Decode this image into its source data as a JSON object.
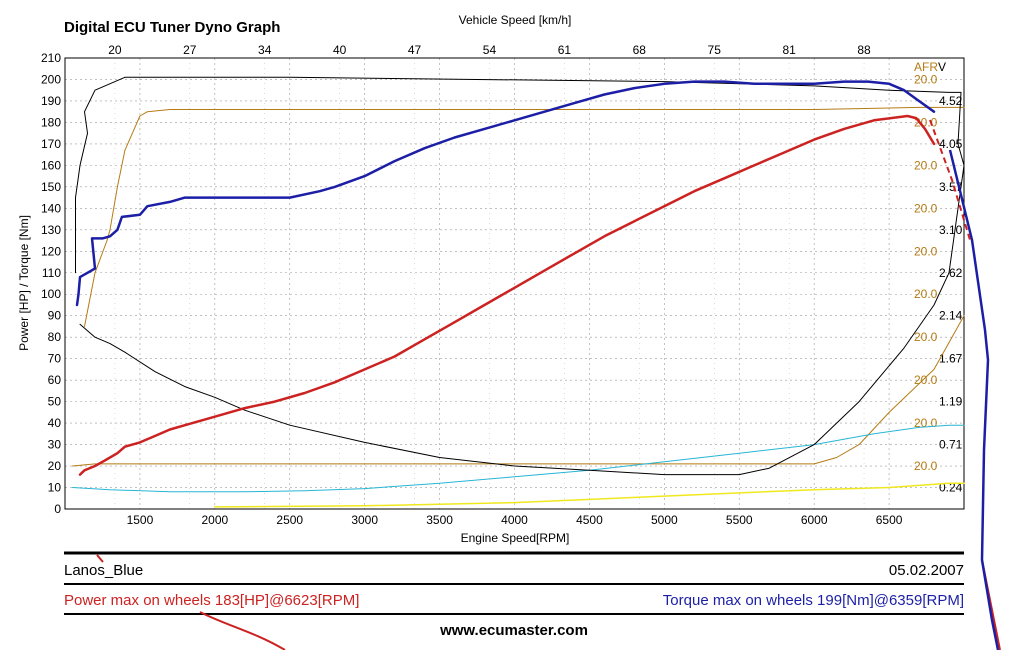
{
  "header": {
    "title": "Digital ECU Tuner Dyno Graph"
  },
  "info": {
    "car_name": "Lanos_Blue",
    "date": "05.02.2007",
    "power_max": "Power max on wheels 183[HP]@6623[RPM]",
    "torque_max": "Torque max on wheels 199[Nm]@6359[RPM]",
    "website": "www.ecumaster.com"
  },
  "colors": {
    "power": "#cc2222",
    "torque": "#1c1fa6",
    "black_line": "#000000",
    "afr": "#b57b14",
    "cyan": "#27b5d6",
    "yellow": "#f0e81e",
    "grid": "#9a9a9a"
  },
  "chart_data": {
    "type": "line",
    "xlabel": "Engine Speed[RPM]",
    "x2label": "Vehicle Speed [km/h]",
    "ylabel": "Power [HP] / Torque [Nm]",
    "xlim": [
      1000,
      7000
    ],
    "ylim": [
      0,
      210
    ],
    "x_ticks": [
      1500,
      2000,
      2500,
      3000,
      3500,
      4000,
      4500,
      5000,
      5500,
      6000,
      6500
    ],
    "y_ticks": [
      0,
      10,
      20,
      30,
      40,
      50,
      60,
      70,
      80,
      90,
      100,
      110,
      120,
      130,
      140,
      150,
      160,
      170,
      180,
      190,
      200,
      210
    ],
    "speed_ticks": [
      "20",
      "27",
      "34",
      "40",
      "47",
      "54",
      "61",
      "68",
      "75",
      "81",
      "88"
    ],
    "speed_tick_rpm": [
      1333,
      1833,
      2333,
      2833,
      3333,
      3833,
      4333,
      4833,
      5333,
      5833,
      6333
    ],
    "afr_axis_label": "AFR",
    "v_axis_label": "V",
    "afr_ticks": [
      "20.0",
      "20.0",
      "20.0",
      "20.0",
      "20.0",
      "20.0",
      "20.0",
      "20.0",
      "20.0",
      "20.0"
    ],
    "afr_tick_positions": [
      200,
      180,
      160,
      140,
      120,
      100,
      80,
      60,
      40,
      20
    ],
    "v_ticks": [
      "4.52",
      "4.05",
      "3.57",
      "3.10",
      "2.62",
      "2.14",
      "1.67",
      "1.19",
      "0.71",
      "0.24"
    ],
    "v_tick_positions": [
      190,
      170,
      150,
      130,
      110,
      90,
      70,
      50,
      30,
      10
    ],
    "grid": true,
    "series": [
      {
        "key": "power",
        "values": [
          [
            1100,
            16
          ],
          [
            1130,
            18
          ],
          [
            1200,
            20
          ],
          [
            1250,
            22
          ],
          [
            1300,
            24
          ],
          [
            1350,
            26
          ],
          [
            1400,
            29
          ],
          [
            1500,
            31
          ],
          [
            1600,
            34
          ],
          [
            1700,
            37
          ],
          [
            1800,
            39
          ],
          [
            2000,
            43
          ],
          [
            2200,
            47
          ],
          [
            2400,
            50
          ],
          [
            2600,
            54
          ],
          [
            2800,
            59
          ],
          [
            3000,
            65
          ],
          [
            3200,
            71
          ],
          [
            3400,
            79
          ],
          [
            3600,
            87
          ],
          [
            3800,
            95
          ],
          [
            4000,
            103
          ],
          [
            4200,
            111
          ],
          [
            4400,
            119
          ],
          [
            4600,
            127
          ],
          [
            4800,
            134
          ],
          [
            5000,
            141
          ],
          [
            5200,
            148
          ],
          [
            5400,
            154
          ],
          [
            5600,
            160
          ],
          [
            5800,
            166
          ],
          [
            6000,
            172
          ],
          [
            6200,
            177
          ],
          [
            6400,
            181
          ],
          [
            6623,
            183
          ],
          [
            6680,
            182
          ],
          [
            6740,
            177
          ],
          [
            6800,
            170
          ]
        ]
      },
      {
        "key": "torque",
        "values": [
          [
            1080,
            95
          ],
          [
            1090,
            100
          ],
          [
            1100,
            108
          ],
          [
            1150,
            110
          ],
          [
            1200,
            112
          ],
          [
            1180,
            126
          ],
          [
            1250,
            126
          ],
          [
            1300,
            127
          ],
          [
            1350,
            130
          ],
          [
            1380,
            136
          ],
          [
            1500,
            137
          ],
          [
            1550,
            141
          ],
          [
            1700,
            143
          ],
          [
            1800,
            145
          ],
          [
            2000,
            145
          ],
          [
            2500,
            145
          ],
          [
            2700,
            148
          ],
          [
            2800,
            150
          ],
          [
            3000,
            155
          ],
          [
            3200,
            162
          ],
          [
            3400,
            168
          ],
          [
            3600,
            173
          ],
          [
            3800,
            177
          ],
          [
            4000,
            181
          ],
          [
            4200,
            185
          ],
          [
            4400,
            189
          ],
          [
            4600,
            193
          ],
          [
            4800,
            196
          ],
          [
            5000,
            198
          ],
          [
            5200,
            199
          ],
          [
            5400,
            199
          ],
          [
            5600,
            198
          ],
          [
            5800,
            198
          ],
          [
            6000,
            198
          ],
          [
            6200,
            199
          ],
          [
            6359,
            199
          ],
          [
            6500,
            198
          ],
          [
            6600,
            195
          ],
          [
            6700,
            190
          ],
          [
            6800,
            185
          ]
        ]
      },
      {
        "key": "black_line",
        "values": [
          [
            1100,
            86
          ],
          [
            1200,
            80
          ],
          [
            1300,
            77
          ],
          [
            1400,
            73
          ],
          [
            1600,
            64
          ],
          [
            1800,
            57
          ],
          [
            2000,
            52
          ],
          [
            2200,
            46
          ],
          [
            2500,
            39
          ],
          [
            3000,
            31
          ],
          [
            3500,
            24
          ],
          [
            4000,
            20
          ],
          [
            4500,
            18
          ],
          [
            5000,
            16
          ],
          [
            5500,
            16
          ],
          [
            5700,
            19
          ],
          [
            6000,
            30
          ],
          [
            6300,
            50
          ],
          [
            6600,
            75
          ],
          [
            6800,
            95
          ],
          [
            6900,
            110
          ]
        ]
      },
      {
        "key": "black_frame",
        "values": [
          [
            1070,
            110
          ],
          [
            1070,
            145
          ],
          [
            1100,
            160
          ],
          [
            1150,
            175
          ],
          [
            1130,
            185
          ],
          [
            1200,
            195
          ],
          [
            1400,
            201
          ],
          [
            2500,
            201
          ],
          [
            5000,
            199
          ],
          [
            6000,
            197
          ],
          [
            6500,
            195
          ],
          [
            6900,
            194
          ],
          [
            6980,
            194
          ],
          [
            6960,
            170
          ],
          [
            7000,
            160
          ],
          [
            6900,
            110
          ]
        ]
      },
      {
        "key": "afr",
        "values": [
          [
            1130,
            85
          ],
          [
            1200,
            110
          ],
          [
            1280,
            125
          ],
          [
            1300,
            130
          ],
          [
            1350,
            150
          ],
          [
            1400,
            167
          ],
          [
            1450,
            175
          ],
          [
            1500,
            183
          ],
          [
            1550,
            185
          ],
          [
            1700,
            186
          ],
          [
            2500,
            186
          ],
          [
            4000,
            186
          ],
          [
            6000,
            186
          ],
          [
            6700,
            187
          ],
          [
            7000,
            187
          ]
        ]
      },
      {
        "key": "afr_low",
        "values": [
          [
            1050,
            20
          ],
          [
            1200,
            21
          ],
          [
            2000,
            21
          ],
          [
            4000,
            21
          ],
          [
            5000,
            21
          ],
          [
            6000,
            21
          ],
          [
            6150,
            24
          ],
          [
            6300,
            30
          ],
          [
            6500,
            45
          ],
          [
            6800,
            65
          ],
          [
            7000,
            90
          ]
        ]
      },
      {
        "key": "cyan",
        "values": [
          [
            1050,
            10
          ],
          [
            1300,
            9
          ],
          [
            1700,
            8
          ],
          [
            2200,
            8
          ],
          [
            2600,
            8.5
          ],
          [
            3000,
            9.5
          ],
          [
            3500,
            12
          ],
          [
            4000,
            15
          ],
          [
            4500,
            18
          ],
          [
            5000,
            22
          ],
          [
            5500,
            26
          ],
          [
            6000,
            30
          ],
          [
            6400,
            35
          ],
          [
            6700,
            38
          ],
          [
            6900,
            39
          ],
          [
            7000,
            39
          ]
        ]
      },
      {
        "key": "yellow",
        "values": [
          [
            2000,
            1
          ],
          [
            3000,
            1.5
          ],
          [
            4000,
            3
          ],
          [
            5000,
            6
          ],
          [
            6000,
            9
          ],
          [
            6500,
            10
          ],
          [
            6900,
            12
          ],
          [
            7000,
            12
          ]
        ]
      }
    ]
  }
}
